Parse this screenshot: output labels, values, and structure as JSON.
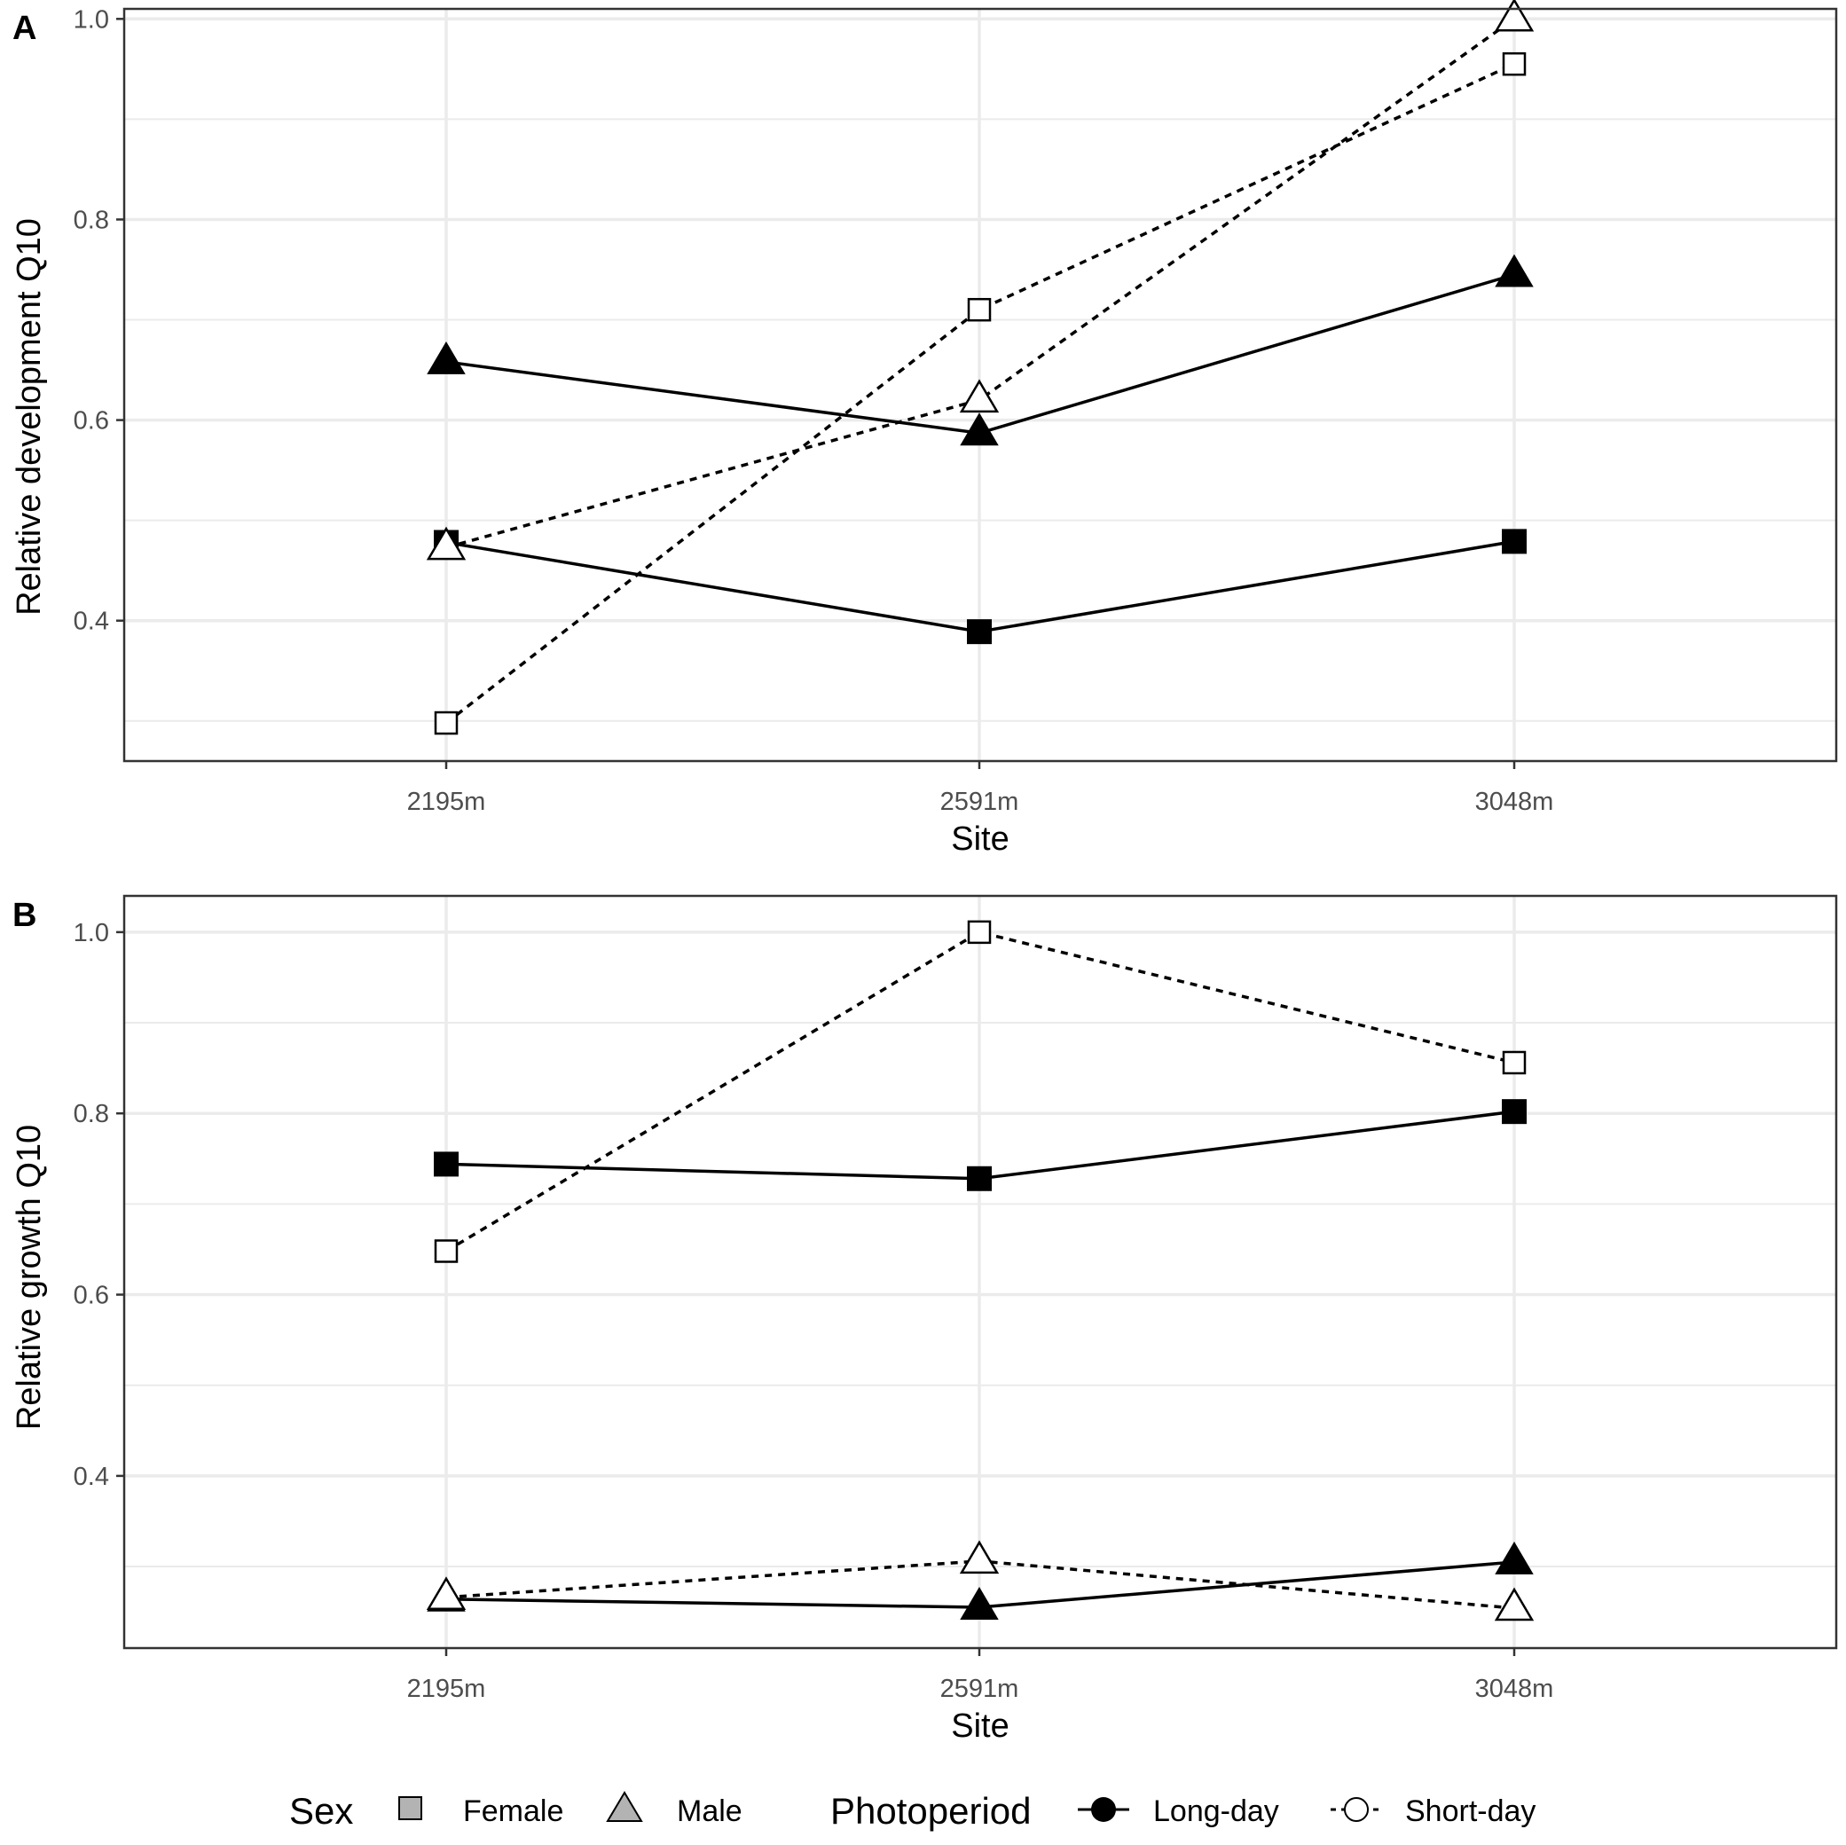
{
  "chart_data": [
    {
      "panel": "A",
      "type": "line",
      "xlabel": "Site",
      "ylabel": "Relative development Q10",
      "categories": [
        "2195m",
        "2591m",
        "3048m"
      ],
      "ylim": [
        0.26,
        1.01
      ],
      "yticks": [
        0.4,
        0.6,
        0.8,
        1.0
      ],
      "ytick_labels": [
        "0.4",
        "0.6",
        "0.8",
        "1.0"
      ],
      "series": [
        {
          "name": "Female Long-day",
          "sex": "Female",
          "photoperiod": "Long-day",
          "values": [
            0.478,
            0.389,
            0.479
          ]
        },
        {
          "name": "Male Long-day",
          "sex": "Male",
          "photoperiod": "Long-day",
          "values": [
            0.658,
            0.587,
            0.745
          ]
        },
        {
          "name": "Female Short-day",
          "sex": "Female",
          "photoperiod": "Short-day",
          "values": [
            0.298,
            0.71,
            0.955
          ]
        },
        {
          "name": "Male Short-day",
          "sex": "Male",
          "photoperiod": "Short-day",
          "values": [
            0.473,
            0.62,
            1.0
          ]
        }
      ],
      "grid": true
    },
    {
      "panel": "B",
      "type": "line",
      "xlabel": "Site",
      "ylabel": "Relative growth Q10",
      "categories": [
        "2195m",
        "2591m",
        "3048m"
      ],
      "ylim": [
        0.21,
        1.04
      ],
      "yticks": [
        0.4,
        0.6,
        0.8,
        1.0
      ],
      "ytick_labels": [
        "0.4",
        "0.6",
        "0.8",
        "1.0"
      ],
      "series": [
        {
          "name": "Female Long-day",
          "sex": "Female",
          "photoperiod": "Long-day",
          "values": [
            0.744,
            0.728,
            0.802
          ]
        },
        {
          "name": "Male Long-day",
          "sex": "Male",
          "photoperiod": "Long-day",
          "values": [
            0.264,
            0.255,
            0.305
          ]
        },
        {
          "name": "Female Short-day",
          "sex": "Female",
          "photoperiod": "Short-day",
          "values": [
            0.648,
            1.0,
            0.856
          ]
        },
        {
          "name": "Male Short-day",
          "sex": "Male",
          "photoperiod": "Short-day",
          "values": [
            0.266,
            0.306,
            0.254
          ]
        }
      ],
      "grid": true
    }
  ],
  "legend": {
    "position": "bottom",
    "sex_title": "Sex",
    "sex_items": [
      {
        "label": "Female",
        "shape": "square"
      },
      {
        "label": "Male",
        "shape": "triangle"
      }
    ],
    "photoperiod_title": "Photoperiod",
    "photoperiod_items": [
      {
        "label": "Long-day",
        "style": "solid-filled"
      },
      {
        "label": "Short-day",
        "style": "dashed-open"
      }
    ]
  },
  "colors": {
    "ink": "#000000",
    "grid": "#ebebeb",
    "tick_text": "#4d4d4d",
    "legend_key_fill": "#b3b3b3"
  }
}
